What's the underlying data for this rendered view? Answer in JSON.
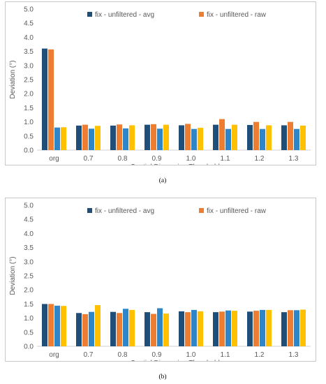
{
  "charts": [
    {
      "caption": "(a)",
      "chart_data": {
        "type": "bar",
        "categories": [
          "org",
          "0.7",
          "0.8",
          "0.9",
          "1.0",
          "1.1",
          "1.2",
          "1.3"
        ],
        "series": [
          {
            "name": "fix - unfiltered - avg",
            "values": [
              3.6,
              0.87,
              0.87,
              0.9,
              0.88,
              0.9,
              0.89,
              0.88
            ]
          },
          {
            "name": "fix - unfiltered - raw",
            "values": [
              3.57,
              0.9,
              0.91,
              0.92,
              0.93,
              1.1,
              1.0,
              1.0
            ]
          },
          {
            "name": "",
            "values": [
              0.8,
              0.76,
              0.77,
              0.76,
              0.75,
              0.75,
              0.75,
              0.75
            ]
          },
          {
            "name": "",
            "values": [
              0.81,
              0.86,
              0.88,
              0.9,
              0.79,
              0.9,
              0.88,
              0.87
            ]
          }
        ],
        "series_colors": [
          "#1f4e79",
          "#ed7d31",
          "#2e86c8",
          "#ffc000"
        ],
        "xlabel": "Spatial Dispersion Threshold",
        "ylabel": "Deviation (°)",
        "ylim": [
          0,
          5
        ],
        "yticks": [
          "0.0",
          "0.5",
          "1.0",
          "1.5",
          "2.0",
          "2.5",
          "3.0",
          "3.5",
          "4.0",
          "4.5",
          "5.0"
        ],
        "grid": false,
        "legend_position": "top"
      }
    },
    {
      "caption": "(b)",
      "chart_data": {
        "type": "bar",
        "categories": [
          "org",
          "0.7",
          "0.8",
          "0.9",
          "1.0",
          "1.1",
          "1.2",
          "1.3"
        ],
        "series": [
          {
            "name": "fix - unfiltered - avg",
            "values": [
              1.5,
              1.18,
              1.22,
              1.21,
              1.24,
              1.21,
              1.23,
              1.21
            ]
          },
          {
            "name": "fix - unfiltered - raw",
            "values": [
              1.5,
              1.14,
              1.18,
              1.15,
              1.21,
              1.23,
              1.26,
              1.28
            ]
          },
          {
            "name": "",
            "values": [
              1.44,
              1.22,
              1.33,
              1.35,
              1.29,
              1.27,
              1.29,
              1.28
            ]
          },
          {
            "name": "",
            "values": [
              1.43,
              1.46,
              1.29,
              1.16,
              1.24,
              1.26,
              1.29,
              1.3
            ]
          }
        ],
        "series_colors": [
          "#1f4e79",
          "#ed7d31",
          "#2e86c8",
          "#ffc000"
        ],
        "xlabel": "Spatial Dispersion Threshold",
        "ylabel": "Deviation (°)",
        "ylim": [
          0,
          5
        ],
        "yticks": [
          "0.0",
          "0.5",
          "1.0",
          "1.5",
          "2.0",
          "2.5",
          "3.0",
          "3.5",
          "4.0",
          "4.5",
          "5.0"
        ],
        "grid": false,
        "legend_position": "top"
      }
    }
  ]
}
